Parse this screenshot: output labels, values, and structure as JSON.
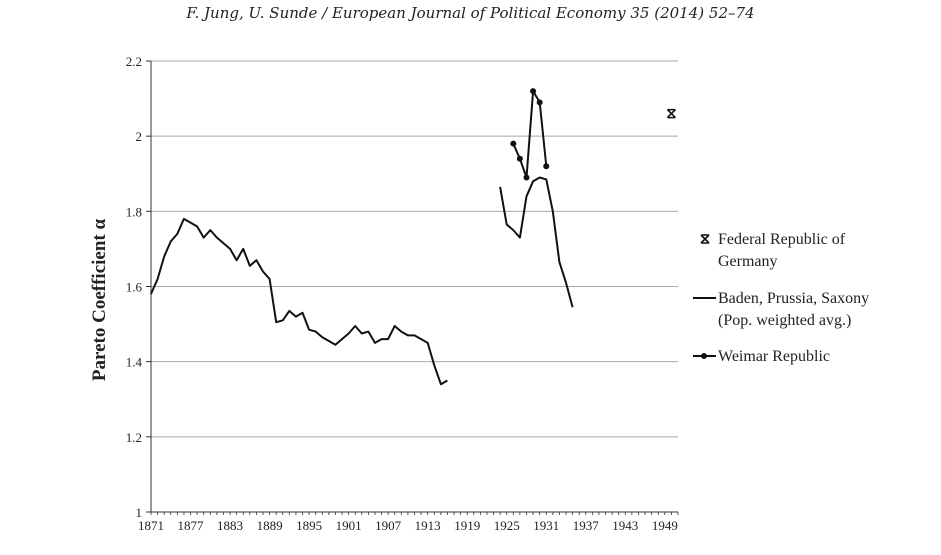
{
  "header": "F. Jung, U. Sunde / European Journal of Political Economy 35 (2014) 52–74",
  "chart_data": {
    "type": "line",
    "title": "",
    "xlabel": "",
    "ylabel": "Pareto Coefficient α",
    "xlim": [
      1871,
      1951
    ],
    "ylim": [
      1,
      2.2
    ],
    "x_ticks": [
      "1871",
      "1877",
      "1883",
      "1889",
      "1895",
      "1901",
      "1907",
      "1913",
      "1919",
      "1925",
      "1931",
      "1937",
      "1943",
      "1949"
    ],
    "y_ticks": [
      "1",
      "1.2",
      "1.4",
      "1.6",
      "1.8",
      "2",
      "2.2"
    ],
    "grid": "horizontal",
    "legend_position": "right",
    "series": [
      {
        "name": "Federal Republic of Germany",
        "marker": "x",
        "line": false,
        "points": [
          [
            1950,
            2.06
          ]
        ]
      },
      {
        "name": "Baden, Prussia, Saxony (Pop. weighted avg.)",
        "marker": "none",
        "line": true,
        "segments": [
          [
            [
              1871,
              1.58
            ],
            [
              1872,
              1.62
            ],
            [
              1873,
              1.68
            ],
            [
              1874,
              1.72
            ],
            [
              1875,
              1.74
            ],
            [
              1876,
              1.78
            ],
            [
              1877,
              1.77
            ],
            [
              1878,
              1.76
            ],
            [
              1879,
              1.73
            ],
            [
              1880,
              1.75
            ],
            [
              1881,
              1.73
            ],
            [
              1882,
              1.715
            ],
            [
              1883,
              1.7
            ],
            [
              1884,
              1.67
            ],
            [
              1885,
              1.7
            ],
            [
              1886,
              1.655
            ],
            [
              1887,
              1.67
            ],
            [
              1888,
              1.64
            ],
            [
              1889,
              1.62
            ],
            [
              1890,
              1.505
            ],
            [
              1891,
              1.51
            ],
            [
              1892,
              1.535
            ],
            [
              1893,
              1.52
            ],
            [
              1894,
              1.53
            ],
            [
              1895,
              1.485
            ],
            [
              1896,
              1.48
            ],
            [
              1897,
              1.465
            ],
            [
              1898,
              1.455
            ],
            [
              1899,
              1.445
            ],
            [
              1900,
              1.46
            ],
            [
              1901,
              1.475
            ],
            [
              1902,
              1.495
            ],
            [
              1903,
              1.475
            ],
            [
              1904,
              1.48
            ],
            [
              1905,
              1.45
            ],
            [
              1906,
              1.46
            ],
            [
              1907,
              1.46
            ],
            [
              1908,
              1.495
            ],
            [
              1909,
              1.48
            ],
            [
              1910,
              1.47
            ],
            [
              1911,
              1.47
            ],
            [
              1912,
              1.46
            ],
            [
              1913,
              1.45
            ],
            [
              1914,
              1.39
            ],
            [
              1915,
              1.34
            ],
            [
              1916,
              1.35
            ]
          ],
          [
            [
              1924,
              1.865
            ],
            [
              1925,
              1.765
            ],
            [
              1926,
              1.75
            ],
            [
              1927,
              1.73
            ],
            [
              1928,
              1.84
            ],
            [
              1929,
              1.88
            ],
            [
              1930,
              1.89
            ],
            [
              1931,
              1.885
            ],
            [
              1932,
              1.8
            ],
            [
              1933,
              1.665
            ],
            [
              1934,
              1.61
            ],
            [
              1935,
              1.545
            ]
          ]
        ]
      },
      {
        "name": "Weimar Republic",
        "marker": "circle",
        "line": true,
        "points": [
          [
            1926,
            1.98
          ],
          [
            1927,
            1.94
          ],
          [
            1928,
            1.89
          ],
          [
            1929,
            2.12
          ],
          [
            1930,
            2.09
          ],
          [
            1931,
            1.92
          ]
        ]
      }
    ]
  }
}
